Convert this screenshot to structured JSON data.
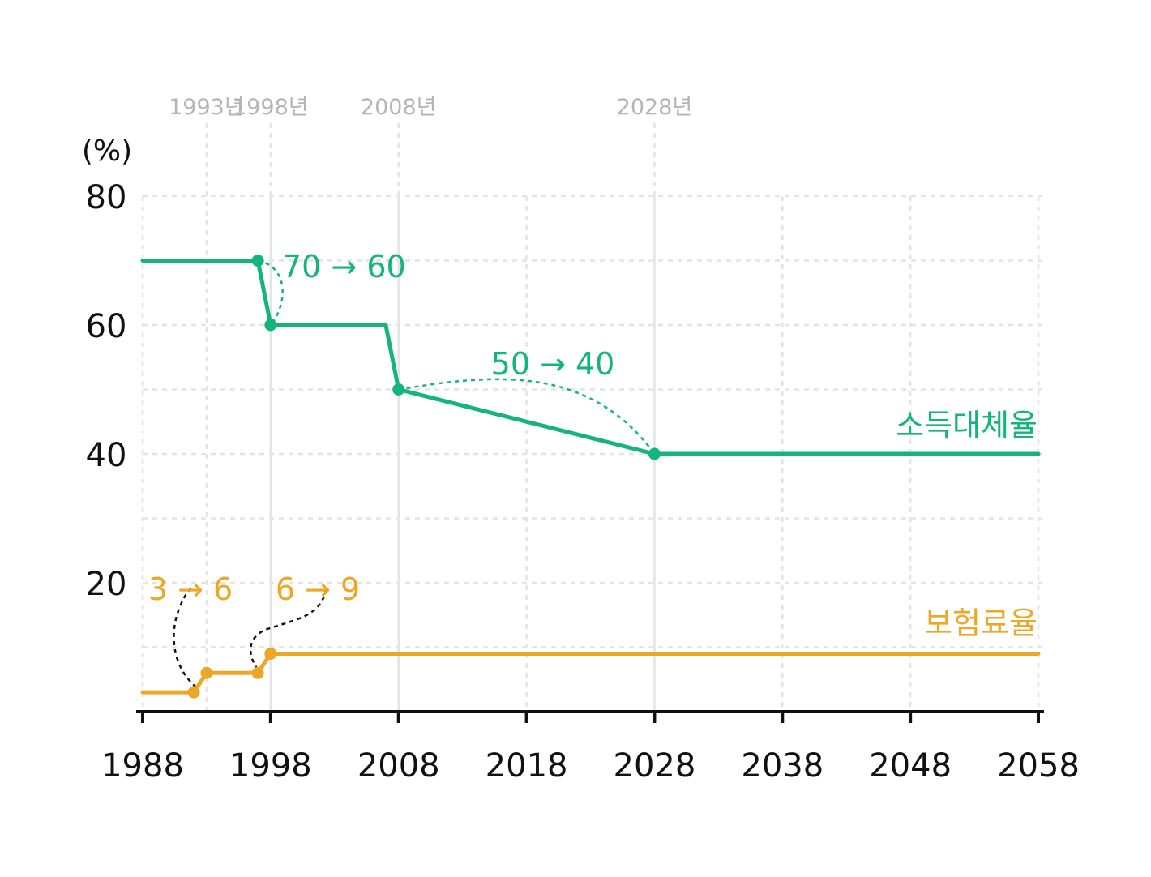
{
  "chart_data": {
    "type": "line",
    "unit": "(%)",
    "x_ticks": [
      "1988",
      "1998",
      "2008",
      "2018",
      "2028",
      "2038",
      "2048",
      "2058"
    ],
    "y_ticks": [
      "20",
      "40",
      "60",
      "80"
    ],
    "xlim": [
      1988,
      2058
    ],
    "ylim": [
      0,
      80
    ],
    "grid": true,
    "reference_years": [
      {
        "label": "1993년",
        "x": 1993
      },
      {
        "label": "1998년",
        "x": 1998
      },
      {
        "label": "2008년",
        "x": 2008
      },
      {
        "label": "2028년",
        "x": 2028
      }
    ],
    "series": [
      {
        "name": "소득대체율",
        "color": "#13b57a",
        "points": [
          [
            1988,
            70
          ],
          [
            1997,
            70
          ],
          [
            1998,
            60
          ],
          [
            2007,
            60
          ],
          [
            2008,
            50
          ],
          [
            2028,
            40
          ],
          [
            2058,
            40
          ]
        ],
        "markers": [
          [
            1997,
            70
          ],
          [
            1998,
            60
          ],
          [
            2008,
            50
          ],
          [
            2028,
            40
          ]
        ]
      },
      {
        "name": "보험료율",
        "color": "#eba725",
        "points": [
          [
            1988,
            3
          ],
          [
            1992,
            3
          ],
          [
            1993,
            6
          ],
          [
            1997,
            6
          ],
          [
            1998,
            9
          ],
          [
            2058,
            9
          ]
        ],
        "markers": [
          [
            1992,
            3
          ],
          [
            1993,
            6
          ],
          [
            1997,
            6
          ],
          [
            1998,
            9
          ]
        ]
      }
    ],
    "annotations": [
      {
        "text": "70 → 60",
        "color": "#13b57a"
      },
      {
        "text": "50 → 40",
        "color": "#13b57a"
      },
      {
        "text": "3 → 6",
        "color": "#eba725"
      },
      {
        "text": "6 → 9",
        "color": "#eba725"
      }
    ]
  }
}
